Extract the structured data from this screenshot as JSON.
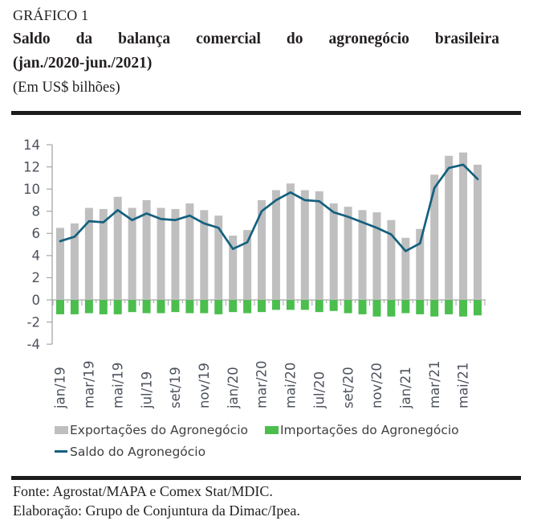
{
  "header": {
    "kicker": "GRÁFICO 1",
    "title_line1": "Saldo da balança comercial do agronegócio brasileira",
    "title_line2": "(jan./2020-jun./2021)",
    "unit_note": "(Em US$ bilhões)"
  },
  "chart_data": {
    "type": "combo: bar + line",
    "title": "Saldo da balança comercial do agronegócio brasileira (jan./2020-jun./2021)",
    "unit": "US$ bilhões",
    "ylim": [
      -4,
      14
    ],
    "y_ticks": [
      14,
      12,
      10,
      8,
      6,
      4,
      2,
      0,
      -2,
      -4
    ],
    "grid": false,
    "legend_position": "bottom-left",
    "categories": [
      "jan/19",
      "fev/19",
      "mar/19",
      "abr/19",
      "mai/19",
      "jun/19",
      "jul/19",
      "ago/19",
      "set/19",
      "out/19",
      "nov/19",
      "dez/19",
      "jan/20",
      "fev/20",
      "mar/20",
      "abr/20",
      "mai/20",
      "jun/20",
      "jul/20",
      "ago/20",
      "set/20",
      "out/20",
      "nov/20",
      "dez/20",
      "jan/21",
      "fev/21",
      "mar/21",
      "abr/21",
      "mai/21",
      "jun/21"
    ],
    "x_tick_labels": [
      "jan/19",
      "mar/19",
      "mai/19",
      "jul/19",
      "set/19",
      "nov/19",
      "jan/20",
      "mar/20",
      "mai/20",
      "jul/20",
      "set/20",
      "nov/20",
      "jan/21",
      "mar/21",
      "mai/21"
    ],
    "series": [
      {
        "name": "Exportações do Agronegócio",
        "type": "bar",
        "color": "#BFBFBF",
        "values": [
          6.5,
          6.9,
          8.3,
          8.2,
          9.3,
          8.3,
          9.0,
          8.3,
          8.2,
          8.7,
          8.1,
          7.6,
          5.8,
          6.3,
          9.0,
          9.9,
          10.5,
          9.9,
          9.8,
          8.7,
          8.4,
          8.1,
          7.9,
          7.2,
          5.6,
          6.4,
          11.3,
          13.0,
          13.3,
          12.2
        ]
      },
      {
        "name": "Importações do Agronegócio",
        "type": "bar",
        "color": "#4BBE4E",
        "values": [
          -1.3,
          -1.3,
          -1.2,
          -1.3,
          -1.3,
          -1.1,
          -1.2,
          -1.2,
          -1.1,
          -1.2,
          -1.2,
          -1.3,
          -1.1,
          -1.2,
          -1.1,
          -0.9,
          -0.9,
          -0.9,
          -1.1,
          -1.0,
          -1.2,
          -1.3,
          -1.5,
          -1.5,
          -1.2,
          -1.3,
          -1.5,
          -1.3,
          -1.5,
          -1.4
        ]
      },
      {
        "name": "Saldo do Agronegócio",
        "type": "line",
        "color": "#14607F",
        "values": [
          5.3,
          5.7,
          7.1,
          7.0,
          8.1,
          7.2,
          7.8,
          7.3,
          7.2,
          7.6,
          6.9,
          6.5,
          4.6,
          5.2,
          8.0,
          9.0,
          9.7,
          9.0,
          8.9,
          7.9,
          7.5,
          7.0,
          6.5,
          5.9,
          4.4,
          5.1,
          10.1,
          11.9,
          12.2,
          10.9
        ]
      }
    ],
    "axis_color": "#a6a6a6",
    "tick_text_color": "#4d525c"
  },
  "footer": {
    "source": "Fonte: Agrostat/MAPA e Comex Stat/MDIC.",
    "elaboration": "Elaboração: Grupo de Conjuntura da Dimac/Ipea."
  }
}
